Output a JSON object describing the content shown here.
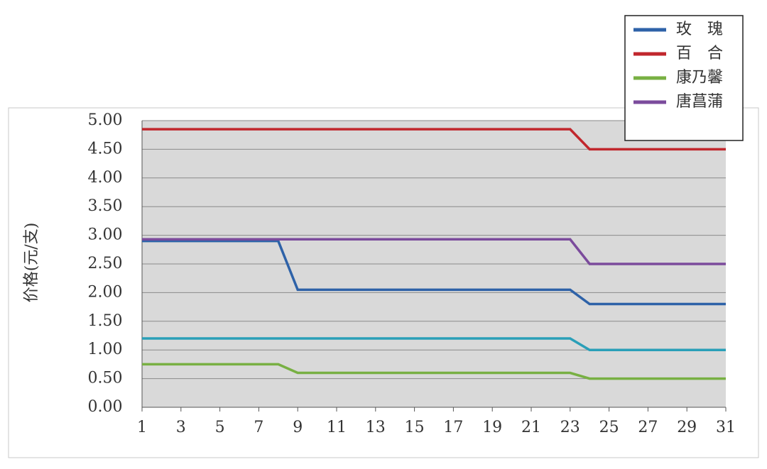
{
  "chart_data": {
    "type": "line",
    "y_label": "价格(元/支)",
    "x": [
      1,
      2,
      3,
      4,
      5,
      6,
      7,
      8,
      9,
      10,
      11,
      12,
      13,
      14,
      15,
      16,
      17,
      18,
      19,
      20,
      21,
      22,
      23,
      24,
      25,
      26,
      27,
      28,
      29,
      30,
      31
    ],
    "xlim": [
      1,
      31
    ],
    "xticks": [
      1,
      3,
      5,
      7,
      9,
      11,
      13,
      15,
      17,
      19,
      21,
      23,
      25,
      27,
      29,
      31
    ],
    "ylim": [
      0,
      5
    ],
    "yticks": [
      {
        "value": 0,
        "label": "0.00"
      },
      {
        "value": 0.5,
        "label": "0.50"
      },
      {
        "value": 1,
        "label": "1.00"
      },
      {
        "value": 1.5,
        "label": "1.50"
      },
      {
        "value": 2,
        "label": "2.00"
      },
      {
        "value": 2.5,
        "label": "2.50"
      },
      {
        "value": 3,
        "label": "3.00"
      },
      {
        "value": 3.5,
        "label": "3.50"
      },
      {
        "value": 4,
        "label": "4.00"
      },
      {
        "value": 4.5,
        "label": "4.50"
      },
      {
        "value": 5,
        "label": "5.00"
      }
    ],
    "grid": true,
    "series": [
      {
        "name": "玫　瑰",
        "color": "#2e62a8",
        "values": [
          2.9,
          2.9,
          2.9,
          2.9,
          2.9,
          2.9,
          2.9,
          2.9,
          2.05,
          2.05,
          2.05,
          2.05,
          2.05,
          2.05,
          2.05,
          2.05,
          2.05,
          2.05,
          2.05,
          2.05,
          2.05,
          2.05,
          2.05,
          1.8,
          1.8,
          1.8,
          1.8,
          1.8,
          1.8,
          1.8,
          1.8
        ]
      },
      {
        "name": "百　合",
        "color": "#c1272d",
        "values": [
          4.85,
          4.85,
          4.85,
          4.85,
          4.85,
          4.85,
          4.85,
          4.85,
          4.85,
          4.85,
          4.85,
          4.85,
          4.85,
          4.85,
          4.85,
          4.85,
          4.85,
          4.85,
          4.85,
          4.85,
          4.85,
          4.85,
          4.85,
          4.5,
          4.5,
          4.5,
          4.5,
          4.5,
          4.5,
          4.5,
          4.5
        ]
      },
      {
        "name": "康乃馨",
        "color": "#78b043",
        "values": [
          0.75,
          0.75,
          0.75,
          0.75,
          0.75,
          0.75,
          0.75,
          0.75,
          0.6,
          0.6,
          0.6,
          0.6,
          0.6,
          0.6,
          0.6,
          0.6,
          0.6,
          0.6,
          0.6,
          0.6,
          0.6,
          0.6,
          0.6,
          0.5,
          0.5,
          0.5,
          0.5,
          0.5,
          0.5,
          0.5,
          0.5
        ]
      },
      {
        "name": "唐菖蒲",
        "color": "#7b4b9c",
        "values": [
          2.93,
          2.93,
          2.93,
          2.93,
          2.93,
          2.93,
          2.93,
          2.93,
          2.93,
          2.93,
          2.93,
          2.93,
          2.93,
          2.93,
          2.93,
          2.93,
          2.93,
          2.93,
          2.93,
          2.93,
          2.93,
          2.93,
          2.93,
          2.5,
          2.5,
          2.5,
          2.5,
          2.5,
          2.5,
          2.5,
          2.5
        ]
      },
      {
        "color": "#2a9fb8",
        "values": [
          1.2,
          1.2,
          1.2,
          1.2,
          1.2,
          1.2,
          1.2,
          1.2,
          1.2,
          1.2,
          1.2,
          1.2,
          1.2,
          1.2,
          1.2,
          1.2,
          1.2,
          1.2,
          1.2,
          1.2,
          1.2,
          1.2,
          1.2,
          1,
          1,
          1,
          1,
          1,
          1,
          1,
          1
        ]
      }
    ]
  }
}
